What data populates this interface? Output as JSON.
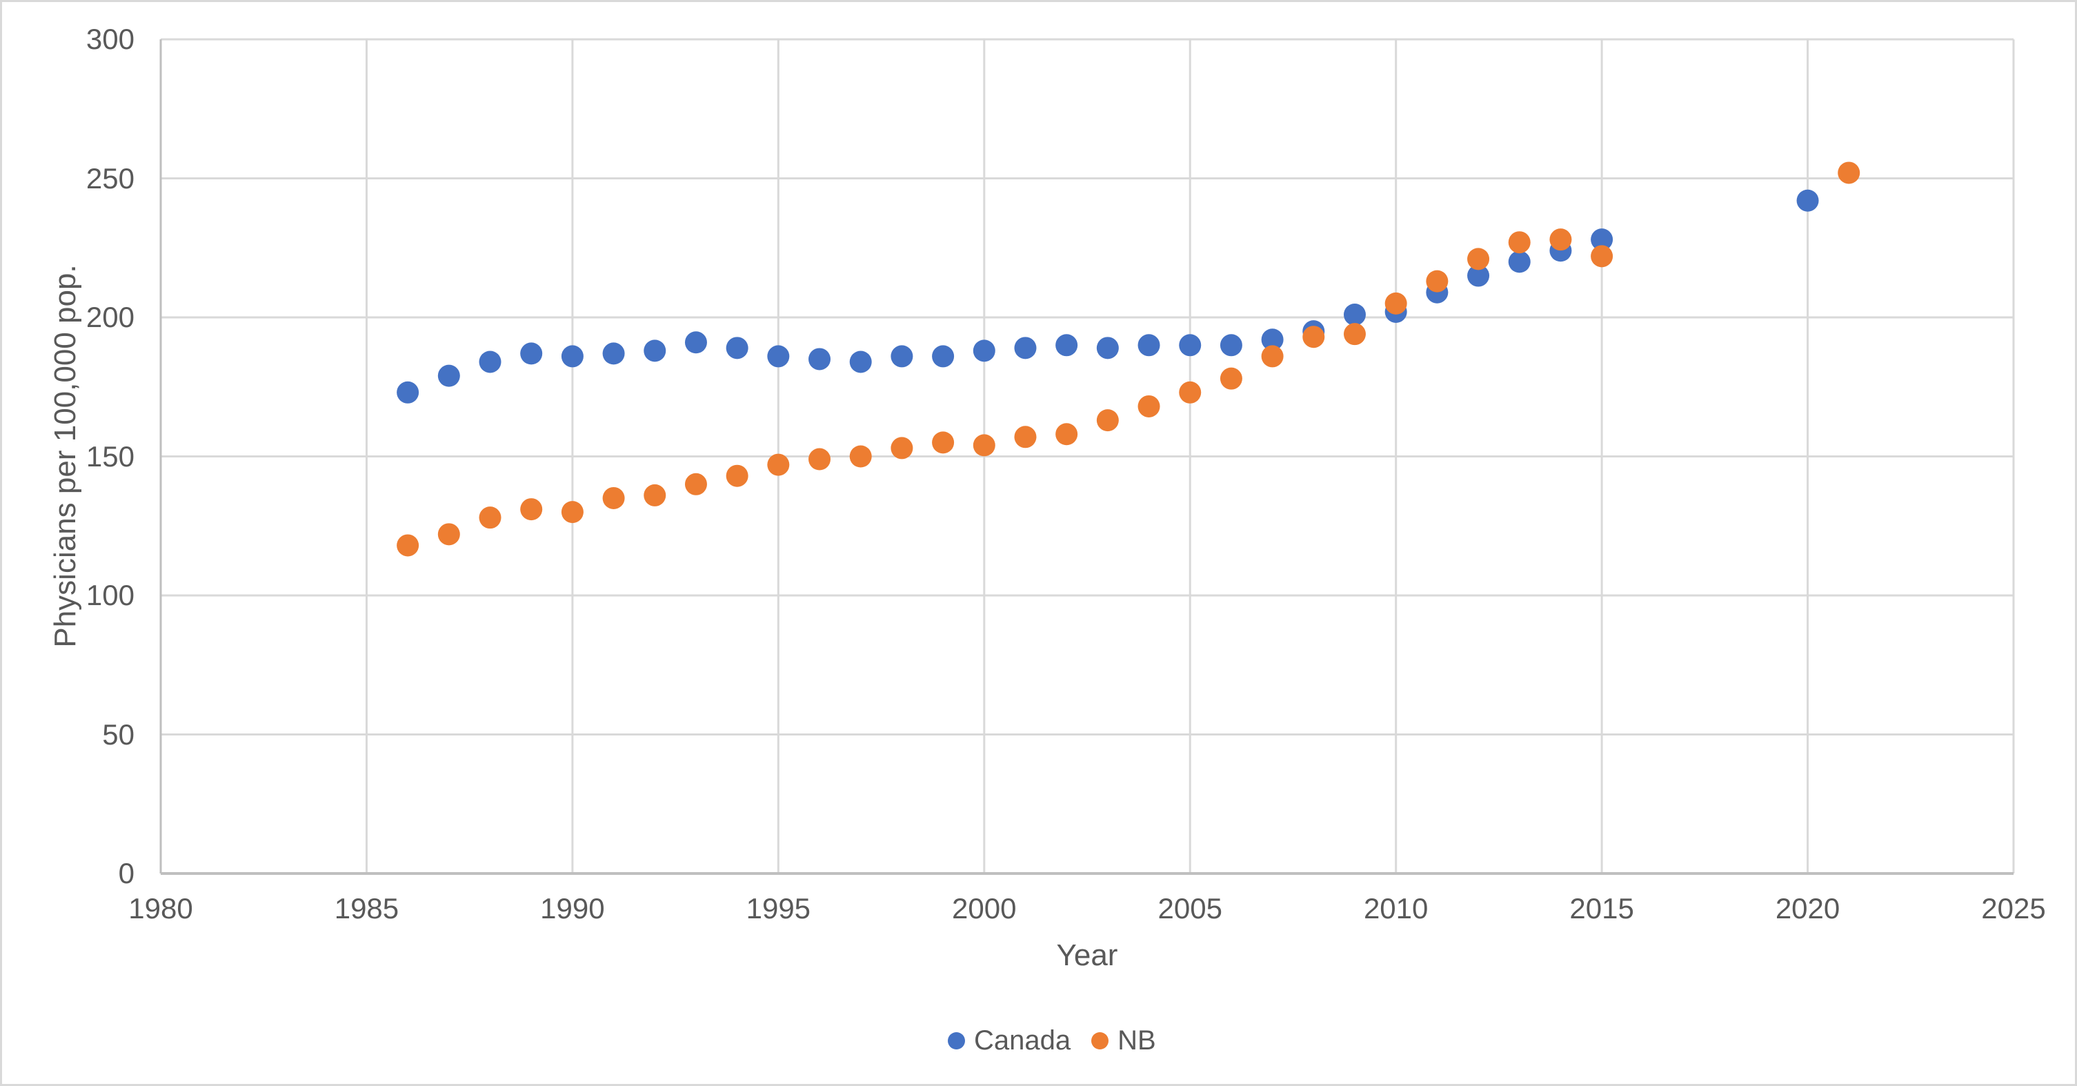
{
  "chart": {
    "background_color": "#FFFFFF",
    "frame_border_color": "#D9D9D9",
    "gridline_color": "#D9D9D9",
    "axis_line_color": "#BFBFBF",
    "text_color": "#595959"
  },
  "legend": {
    "position": "bottom-center",
    "items": [
      {
        "label": "Canada",
        "color": "#4472C4",
        "icon": "circle-marker"
      },
      {
        "label": "NB",
        "color": "#ED7D31",
        "icon": "circle-marker"
      }
    ]
  },
  "chart_data": {
    "type": "scatter",
    "title": "",
    "xlabel": "Year",
    "ylabel": "Physicians per 100,000 pop.",
    "xlim": [
      1980,
      2025
    ],
    "ylim": [
      0,
      300
    ],
    "x_ticks": [
      1980,
      1985,
      1990,
      1995,
      2000,
      2005,
      2010,
      2015,
      2020,
      2025
    ],
    "y_ticks": [
      0,
      50,
      100,
      150,
      200,
      250,
      300
    ],
    "grid": true,
    "legend_position": "bottom",
    "series": [
      {
        "name": "Canada",
        "color": "#4472C4",
        "points": [
          [
            1986,
            173
          ],
          [
            1987,
            179
          ],
          [
            1988,
            184
          ],
          [
            1989,
            187
          ],
          [
            1990,
            186
          ],
          [
            1991,
            187
          ],
          [
            1992,
            188
          ],
          [
            1993,
            191
          ],
          [
            1994,
            189
          ],
          [
            1995,
            186
          ],
          [
            1996,
            185
          ],
          [
            1997,
            184
          ],
          [
            1998,
            186
          ],
          [
            1999,
            186
          ],
          [
            2000,
            188
          ],
          [
            2001,
            189
          ],
          [
            2002,
            190
          ],
          [
            2003,
            189
          ],
          [
            2004,
            190
          ],
          [
            2005,
            190
          ],
          [
            2006,
            190
          ],
          [
            2007,
            192
          ],
          [
            2008,
            195
          ],
          [
            2009,
            201
          ],
          [
            2010,
            202
          ],
          [
            2011,
            209
          ],
          [
            2012,
            215
          ],
          [
            2013,
            220
          ],
          [
            2014,
            224
          ],
          [
            2015,
            228
          ],
          [
            2020,
            242
          ]
        ]
      },
      {
        "name": "NB",
        "color": "#ED7D31",
        "points": [
          [
            1986,
            118
          ],
          [
            1987,
            122
          ],
          [
            1988,
            128
          ],
          [
            1989,
            131
          ],
          [
            1990,
            130
          ],
          [
            1991,
            135
          ],
          [
            1992,
            136
          ],
          [
            1993,
            140
          ],
          [
            1994,
            143
          ],
          [
            1995,
            147
          ],
          [
            1996,
            149
          ],
          [
            1997,
            150
          ],
          [
            1998,
            153
          ],
          [
            1999,
            155
          ],
          [
            2000,
            154
          ],
          [
            2001,
            157
          ],
          [
            2002,
            158
          ],
          [
            2003,
            163
          ],
          [
            2004,
            168
          ],
          [
            2005,
            173
          ],
          [
            2006,
            178
          ],
          [
            2007,
            186
          ],
          [
            2008,
            193
          ],
          [
            2009,
            194
          ],
          [
            2010,
            205
          ],
          [
            2011,
            213
          ],
          [
            2012,
            221
          ],
          [
            2013,
            227
          ],
          [
            2014,
            228
          ],
          [
            2015,
            222
          ],
          [
            2021,
            252
          ]
        ]
      }
    ]
  }
}
